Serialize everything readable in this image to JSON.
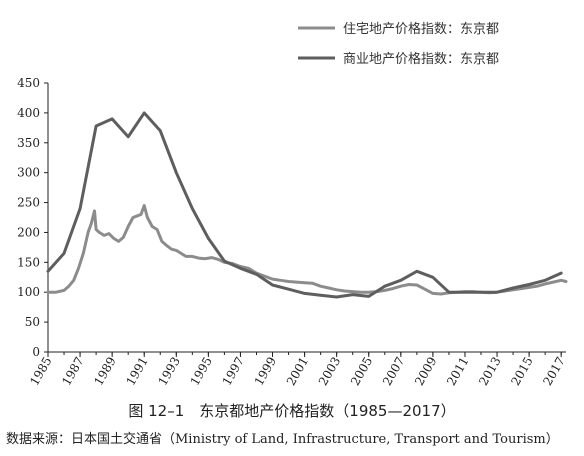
{
  "chart_data": {
    "type": "line",
    "caption": "图 12–1　东京都地产价格指数（1985—2017）",
    "source": "数据来源：日本国土交通省（Ministry of Land, Infrastructure, Transport and Tourism）",
    "ylim": [
      0,
      450
    ],
    "yticks": [
      0,
      50,
      100,
      150,
      200,
      250,
      300,
      350,
      400,
      450
    ],
    "xlim": [
      1985,
      2017.3
    ],
    "xticks": [
      "1985",
      "1987",
      "1989",
      "1991",
      "1993",
      "1995",
      "1997",
      "1999",
      "2001",
      "2003",
      "2005",
      "2007",
      "2009",
      "2011",
      "2013",
      "2015",
      "2017"
    ],
    "grid": false,
    "legend_position": "top-right",
    "series": [
      {
        "name": "住宅地产价格指数：东京都",
        "color": "#8c8c8c",
        "x": [
          1985,
          1985.5,
          1986,
          1986.3,
          1986.6,
          1986.9,
          1987.2,
          1987.5,
          1987.7,
          1987.9,
          1988.0,
          1988.2,
          1988.5,
          1988.8,
          1989.1,
          1989.4,
          1989.7,
          1990.0,
          1990.3,
          1990.6,
          1990.8,
          1991.0,
          1991.2,
          1991.5,
          1991.8,
          1992.1,
          1992.4,
          1992.7,
          1993.0,
          1993.3,
          1993.6,
          1994.0,
          1994.4,
          1994.8,
          1995.2,
          1995.6,
          1996.0,
          1996.5,
          1997.0,
          1997.5,
          1998.0,
          1998.5,
          1999.0,
          1999.5,
          2000.0,
          2000.5,
          2001.0,
          2001.5,
          2002.0,
          2002.5,
          2003.0,
          2003.5,
          2004.0,
          2004.5,
          2005.0,
          2005.5,
          2006.0,
          2006.5,
          2007.0,
          2007.5,
          2008.0,
          2008.5,
          2009.0,
          2009.5,
          2010.0,
          2010.5,
          2011.0,
          2011.5,
          2012.0,
          2012.5,
          2013.0,
          2013.5,
          2014.0,
          2014.5,
          2015.0,
          2015.5,
          2016.0,
          2016.5,
          2017.0,
          2017.3
        ],
        "y": [
          100,
          100,
          103,
          110,
          120,
          140,
          165,
          200,
          215,
          236,
          205,
          200,
          195,
          198,
          190,
          185,
          192,
          210,
          225,
          228,
          230,
          245,
          225,
          210,
          205,
          185,
          178,
          172,
          170,
          165,
          160,
          160,
          157,
          156,
          158,
          155,
          150,
          148,
          143,
          140,
          132,
          127,
          122,
          120,
          118,
          117,
          116,
          115,
          110,
          107,
          104,
          102,
          101,
          100,
          100,
          101,
          103,
          106,
          110,
          113,
          112,
          105,
          98,
          97,
          99,
          100,
          101,
          101,
          100,
          99,
          100,
          102,
          104,
          106,
          108,
          110,
          114,
          117,
          120,
          118
        ]
      },
      {
        "name": "商业地产价格指数：东京都",
        "color": "#5e5e5e",
        "x": [
          1985,
          1986,
          1987,
          1988,
          1989,
          1990,
          1991,
          1992,
          1993,
          1994,
          1995,
          1996,
          1997,
          1998,
          1999,
          2000,
          2001,
          2002,
          2003,
          2004,
          2005,
          2006,
          2007,
          2008,
          2009,
          2010,
          2011,
          2012,
          2013,
          2014,
          2015,
          2016,
          2017
        ],
        "y": [
          135,
          165,
          240,
          378,
          390,
          360,
          400,
          370,
          300,
          240,
          190,
          152,
          140,
          130,
          112,
          105,
          98,
          95,
          92,
          96,
          93,
          110,
          120,
          135,
          125,
          100,
          100,
          100,
          100,
          107,
          113,
          120,
          132
        ]
      }
    ]
  }
}
